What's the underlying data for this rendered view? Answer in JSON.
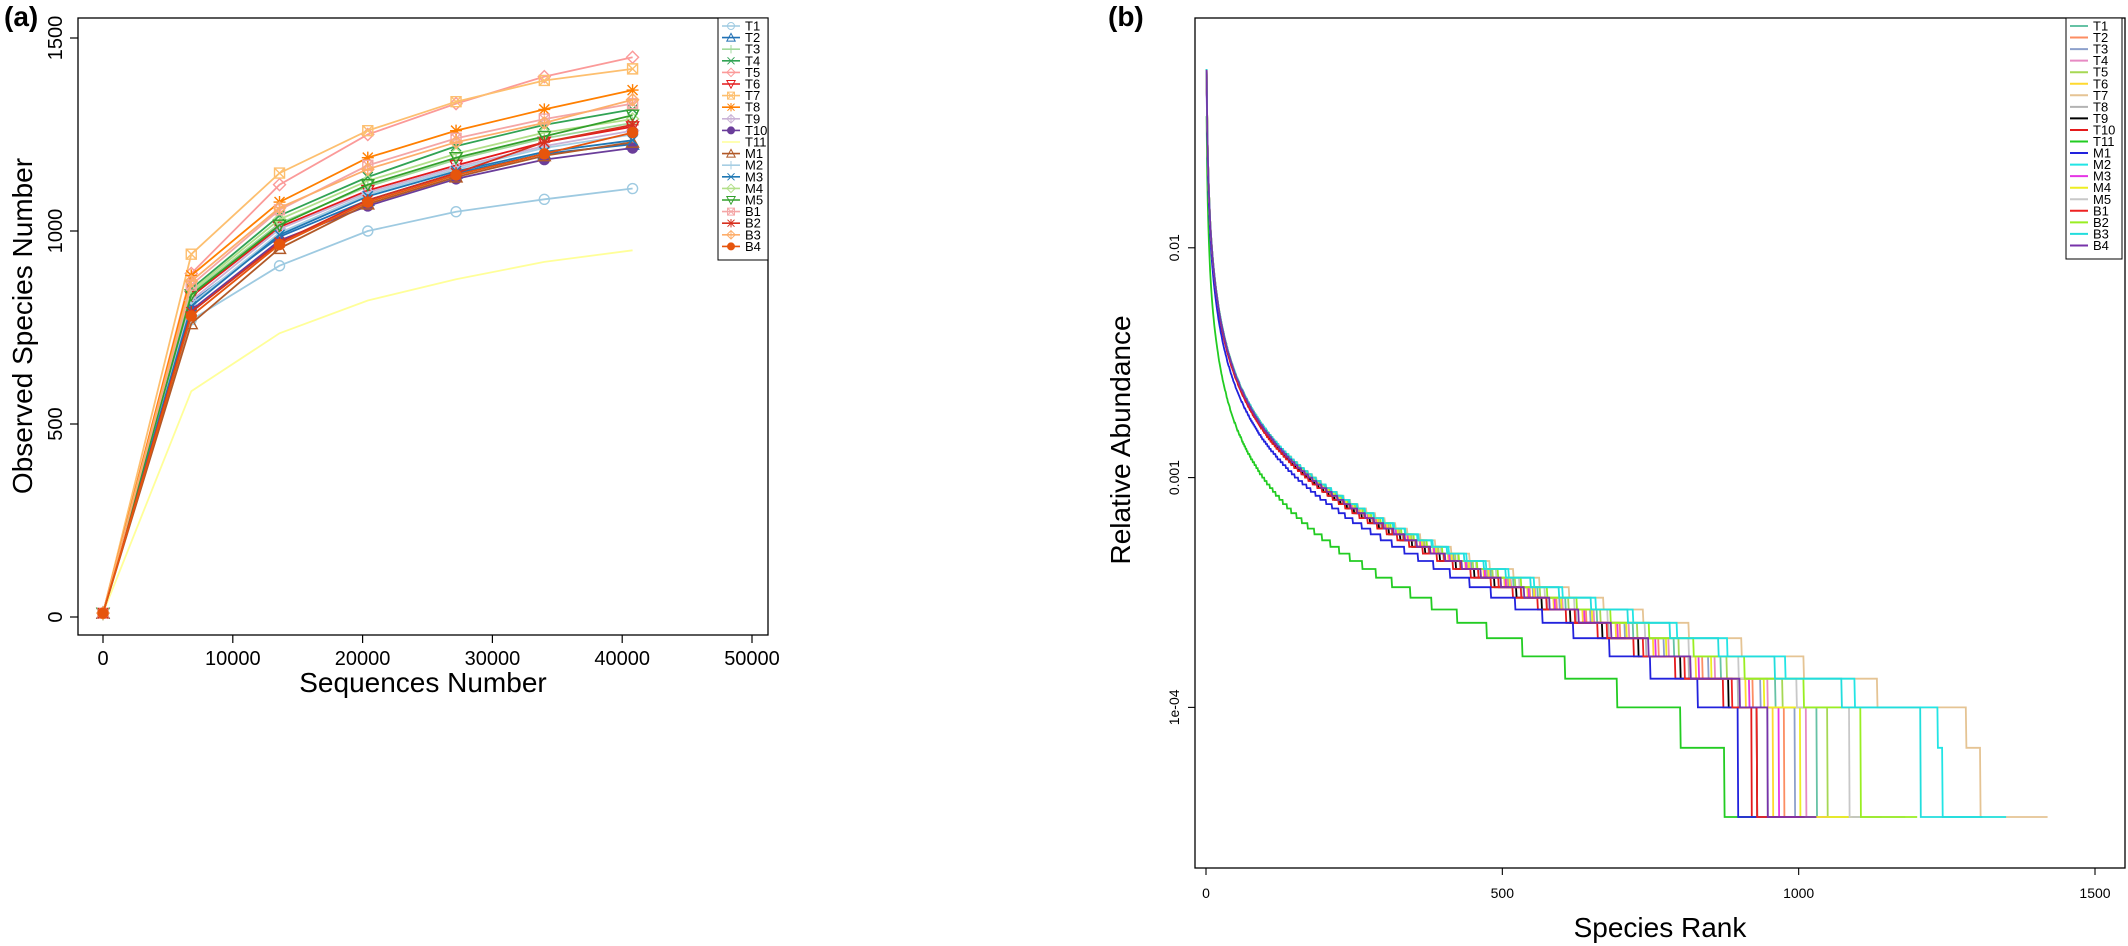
{
  "chart_data": [
    {
      "panel": "(a)",
      "type": "line",
      "title": "",
      "xlabel": "Sequences Number",
      "ylabel": "Observed Species Number",
      "xlim": [
        0,
        50000
      ],
      "ylim": [
        0,
        1500
      ],
      "xticks": [
        0,
        10000,
        20000,
        30000,
        40000,
        50000
      ],
      "yticks": [
        0,
        500,
        1000,
        1500
      ],
      "grid": false,
      "legend": "top-right",
      "x": [
        0,
        6800,
        13600,
        20400,
        27200,
        34000,
        40800
      ],
      "series": [
        {
          "name": "T1",
          "color": "#9ecae1",
          "marker": "circle",
          "values": [
            10,
            770,
            910,
            1000,
            1050,
            1082,
            1110
          ]
        },
        {
          "name": "T2",
          "color": "#2171b5",
          "marker": "triangle-up",
          "values": [
            10,
            815,
            985,
            1080,
            1150,
            1200,
            1225
          ]
        },
        {
          "name": "T3",
          "color": "#a1d99b",
          "marker": "plus",
          "values": [
            10,
            840,
            1020,
            1115,
            1185,
            1240,
            1280
          ]
        },
        {
          "name": "T4",
          "color": "#31a354",
          "marker": "cross",
          "values": [
            10,
            850,
            1040,
            1140,
            1220,
            1275,
            1315
          ]
        },
        {
          "name": "T5",
          "color": "#fb9a99",
          "marker": "diamond",
          "values": [
            10,
            890,
            1120,
            1250,
            1330,
            1400,
            1450
          ]
        },
        {
          "name": "T6",
          "color": "#e31a1c",
          "marker": "triangle-down",
          "values": [
            10,
            830,
            1010,
            1105,
            1170,
            1230,
            1270
          ]
        },
        {
          "name": "T7",
          "color": "#fdbf6f",
          "marker": "square-cross",
          "values": [
            10,
            940,
            1150,
            1260,
            1335,
            1390,
            1420
          ]
        },
        {
          "name": "T8",
          "color": "#ff7f00",
          "marker": "star",
          "values": [
            10,
            885,
            1075,
            1190,
            1260,
            1315,
            1365
          ]
        },
        {
          "name": "T9",
          "color": "#cab2d6",
          "marker": "diamond-plus",
          "values": [
            10,
            820,
            1005,
            1100,
            1165,
            1220,
            1260
          ]
        },
        {
          "name": "T10",
          "color": "#6a3d9a",
          "marker": "circle-filled",
          "values": [
            10,
            795,
            975,
            1065,
            1135,
            1185,
            1215
          ]
        },
        {
          "name": "T11",
          "color": "#ffff99",
          "marker": "none",
          "values": [
            10,
            585,
            735,
            820,
            875,
            920,
            950
          ]
        },
        {
          "name": "M1",
          "color": "#b15928",
          "marker": "triangle-up",
          "values": [
            10,
            760,
            955,
            1070,
            1140,
            1195,
            1230
          ]
        },
        {
          "name": "M2",
          "color": "#a6cee3",
          "marker": "plus",
          "values": [
            10,
            810,
            995,
            1095,
            1160,
            1215,
            1250
          ]
        },
        {
          "name": "M3",
          "color": "#1f78b4",
          "marker": "cross",
          "values": [
            10,
            805,
            990,
            1090,
            1155,
            1205,
            1235
          ]
        },
        {
          "name": "M4",
          "color": "#b2df8a",
          "marker": "diamond",
          "values": [
            10,
            845,
            1030,
            1130,
            1200,
            1255,
            1290
          ]
        },
        {
          "name": "M5",
          "color": "#33a02c",
          "marker": "triangle-down",
          "values": [
            10,
            835,
            1015,
            1120,
            1190,
            1245,
            1300
          ]
        },
        {
          "name": "B1",
          "color": "#f4a6a6",
          "marker": "square-cross",
          "values": [
            10,
            860,
            1055,
            1170,
            1240,
            1290,
            1330
          ]
        },
        {
          "name": "B2",
          "color": "#d7301f",
          "marker": "star",
          "values": [
            10,
            790,
            970,
            1080,
            1150,
            1230,
            1275
          ]
        },
        {
          "name": "B3",
          "color": "#fdae6b",
          "marker": "diamond-plus",
          "values": [
            10,
            870,
            1060,
            1160,
            1230,
            1280,
            1340
          ]
        },
        {
          "name": "B4",
          "color": "#e6550d",
          "marker": "circle-filled",
          "values": [
            10,
            780,
            965,
            1075,
            1145,
            1200,
            1255
          ]
        }
      ]
    },
    {
      "panel": "(b)",
      "type": "line",
      "title": "",
      "xlabel": "Species Rank",
      "ylabel": "Relative Abundance",
      "xlim": [
        0,
        1500
      ],
      "ylim": [
        2e-05,
        0.1
      ],
      "yscale": "log",
      "xticks": [
        0,
        500,
        1000,
        1500
      ],
      "yticks": [
        0.01,
        0.001,
        0.0001
      ],
      "ytick_labels": [
        "0.01",
        "0.001",
        "1e-04"
      ],
      "grid": false,
      "legend": "top-right",
      "series": [
        {
          "name": "T1",
          "color": "#66c2a5",
          "max_rank": 1120,
          "tail": 1.0
        },
        {
          "name": "T2",
          "color": "#fc8d62",
          "max_rank": 1060,
          "tail": 1.0
        },
        {
          "name": "T3",
          "color": "#8da0cb",
          "max_rank": 1080,
          "tail": 1.0
        },
        {
          "name": "T4",
          "color": "#e78ac3",
          "max_rank": 1100,
          "tail": 1.0
        },
        {
          "name": "T5",
          "color": "#a6d854",
          "max_rank": 1140,
          "tail": 1.0
        },
        {
          "name": "T6",
          "color": "#ffd92f",
          "max_rank": 1040,
          "tail": 1.0
        },
        {
          "name": "T7",
          "color": "#e5c494",
          "max_rank": 1420,
          "tail": 1.0
        },
        {
          "name": "T8",
          "color": "#b3b3b3",
          "max_rank": 1030,
          "tail": 0.98
        },
        {
          "name": "T9",
          "color": "#000000",
          "max_rank": 1010,
          "tail": 0.97
        },
        {
          "name": "T10",
          "color": "#e41a1c",
          "max_rank": 1000,
          "tail": 0.96
        },
        {
          "name": "T11",
          "color": "#22cc22",
          "max_rank": 950,
          "tail": 0.6
        },
        {
          "name": "M1",
          "color": "#2222dd",
          "max_rank": 975,
          "tail": 0.88
        },
        {
          "name": "M2",
          "color": "#22e5e5",
          "max_rank": 1350,
          "tail": 1.0
        },
        {
          "name": "M3",
          "color": "#e535e5",
          "max_rank": 1050,
          "tail": 1.0
        },
        {
          "name": "M4",
          "color": "#eeee22",
          "max_rank": 1090,
          "tail": 1.0
        },
        {
          "name": "M5",
          "color": "#c8c8c8",
          "max_rank": 1180,
          "tail": 1.0
        },
        {
          "name": "B1",
          "color": "#ee2222",
          "max_rank": 1010,
          "tail": 0.99
        },
        {
          "name": "B2",
          "color": "#99ee22",
          "max_rank": 1200,
          "tail": 1.0
        },
        {
          "name": "B3",
          "color": "#22dddd",
          "max_rank": 1310,
          "tail": 1.0
        },
        {
          "name": "B4",
          "color": "#7733aa",
          "max_rank": 1030,
          "tail": 0.99
        }
      ]
    }
  ]
}
